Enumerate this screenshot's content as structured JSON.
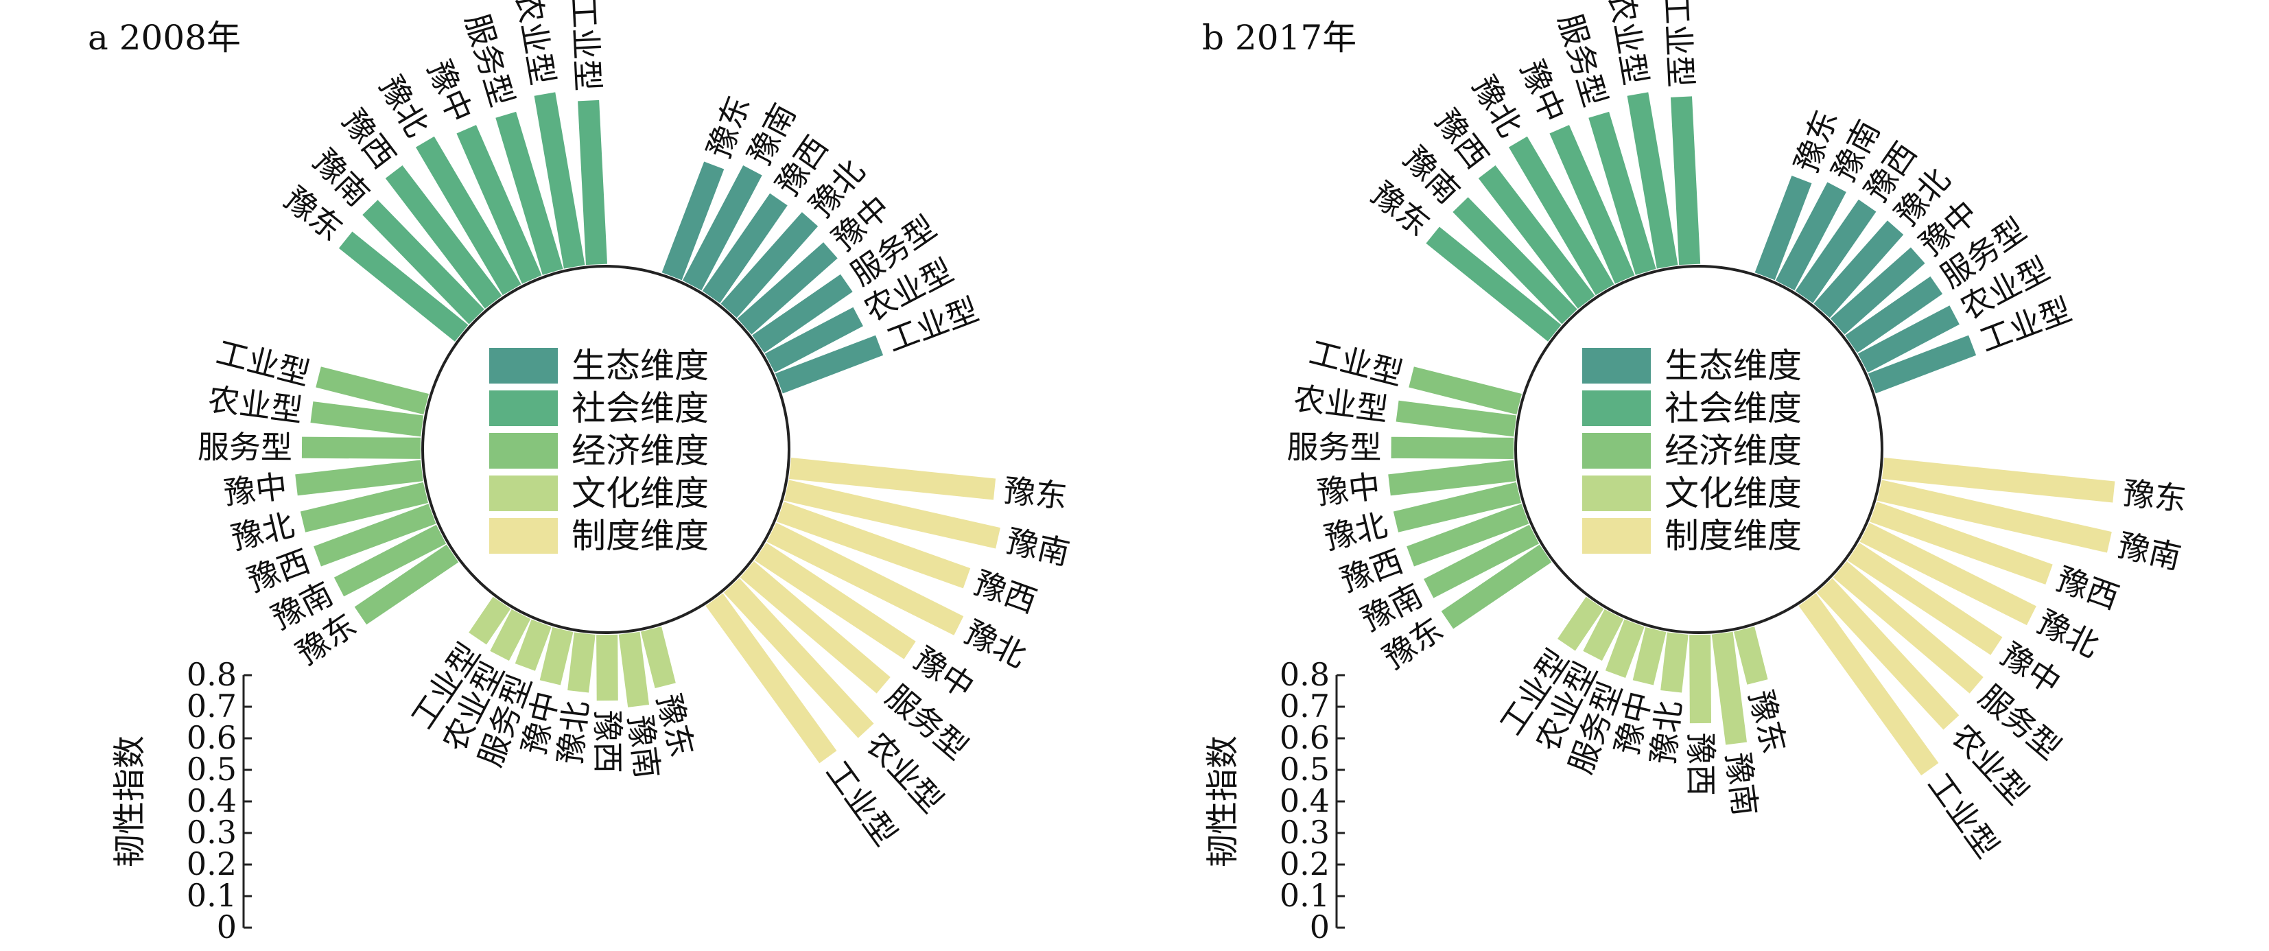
{
  "chart_data": [
    {
      "type": "radial-bar",
      "title": "a 2008年",
      "ylabel": "韧性指数",
      "ylim": [
        0,
        0.8
      ],
      "yticks": [
        "0",
        "0.1",
        "0.2",
        "0.3",
        "0.4",
        "0.5",
        "0.6",
        "0.7",
        "0.8"
      ],
      "legend": [
        "生态维度",
        "社会维度",
        "经济维度",
        "文化维度",
        "制度维度"
      ],
      "colors": {
        "生态维度": "#4f9a8c",
        "社会维度": "#5bb083",
        "经济维度": "#86c47c",
        "文化维度": "#bcd88a",
        "制度维度": "#ece39c"
      },
      "groups": [
        {
          "name": "生态维度",
          "categories": [
            "豫东",
            "豫南",
            "豫西",
            "豫北",
            "豫中",
            "服务型",
            "农业型",
            "工业型"
          ],
          "values": [
            0.32,
            0.35,
            0.32,
            0.33,
            0.31,
            0.29,
            0.27,
            0.29
          ]
        },
        {
          "name": "制度维度",
          "categories": [
            "豫东",
            "豫南",
            "豫西",
            "豫北",
            "豫中",
            "服务型",
            "农业型",
            "工业型"
          ],
          "values": [
            0.55,
            0.58,
            0.53,
            0.56,
            0.48,
            0.48,
            0.53,
            0.52
          ]
        },
        {
          "name": "文化维度",
          "categories": [
            "工业型",
            "农业型",
            "服务型",
            "豫中",
            "豫北",
            "豫西",
            "豫南",
            "豫东"
          ],
          "values": [
            0.12,
            0.13,
            0.13,
            0.15,
            0.16,
            0.18,
            0.2,
            0.16
          ]
        },
        {
          "name": "经济维度",
          "categories": [
            "工业型",
            "农业型",
            "服务型",
            "豫中",
            "豫北",
            "豫西",
            "豫南",
            "豫东"
          ],
          "values": [
            0.3,
            0.3,
            0.32,
            0.34,
            0.34,
            0.33,
            0.31,
            0.3
          ]
        },
        {
          "name": "社会维度",
          "categories": [
            "豫东",
            "豫南",
            "豫西",
            "豫北",
            "豫中",
            "服务型",
            "农业型",
            "工业型"
          ],
          "values": [
            0.4,
            0.41,
            0.44,
            0.46,
            0.44,
            0.44,
            0.47,
            0.44
          ]
        }
      ]
    },
    {
      "type": "radial-bar",
      "title": "b 2017年",
      "ylabel": "韧性指数",
      "ylim": [
        0,
        0.8
      ],
      "yticks": [
        "0",
        "0.1",
        "0.2",
        "0.3",
        "0.4",
        "0.5",
        "0.6",
        "0.7",
        "0.8"
      ],
      "legend": [
        "生态维度",
        "社会维度",
        "经济维度",
        "文化维度",
        "制度维度"
      ],
      "colors": {
        "生态维度": "#4f9a8c",
        "社会维度": "#5bb083",
        "经济维度": "#86c47c",
        "文化维度": "#bcd88a",
        "制度维度": "#ece39c"
      },
      "groups": [
        {
          "name": "生态维度",
          "categories": [
            "豫东",
            "豫南",
            "豫西",
            "豫北",
            "豫中",
            "服务型",
            "农业型",
            "工业型"
          ],
          "values": [
            0.28,
            0.3,
            0.3,
            0.3,
            0.29,
            0.28,
            0.28,
            0.29
          ]
        },
        {
          "name": "制度维度",
          "categories": [
            "豫东",
            "豫南",
            "豫西",
            "豫北",
            "豫中",
            "服务型",
            "农业型",
            "工业型"
          ],
          "values": [
            0.62,
            0.63,
            0.5,
            0.5,
            0.46,
            0.48,
            0.5,
            0.56
          ]
        },
        {
          "name": "文化维度",
          "categories": [
            "工业型",
            "农业型",
            "服务型",
            "豫中",
            "豫北",
            "豫西",
            "豫南",
            "豫东"
          ],
          "values": [
            0.14,
            0.13,
            0.15,
            0.15,
            0.16,
            0.24,
            0.3,
            0.15
          ]
        },
        {
          "name": "经济维度",
          "categories": [
            "工业型",
            "农业型",
            "服务型",
            "豫中",
            "豫北",
            "豫西",
            "豫南",
            "豫东"
          ],
          "values": [
            0.3,
            0.32,
            0.33,
            0.34,
            0.34,
            0.33,
            0.32,
            0.32
          ]
        },
        {
          "name": "社会维度",
          "categories": [
            "豫东",
            "豫南",
            "豫西",
            "豫北",
            "豫中",
            "服务型",
            "农业型",
            "工业型"
          ],
          "values": [
            0.42,
            0.42,
            0.44,
            0.46,
            0.44,
            0.44,
            0.47,
            0.45
          ]
        }
      ]
    }
  ]
}
